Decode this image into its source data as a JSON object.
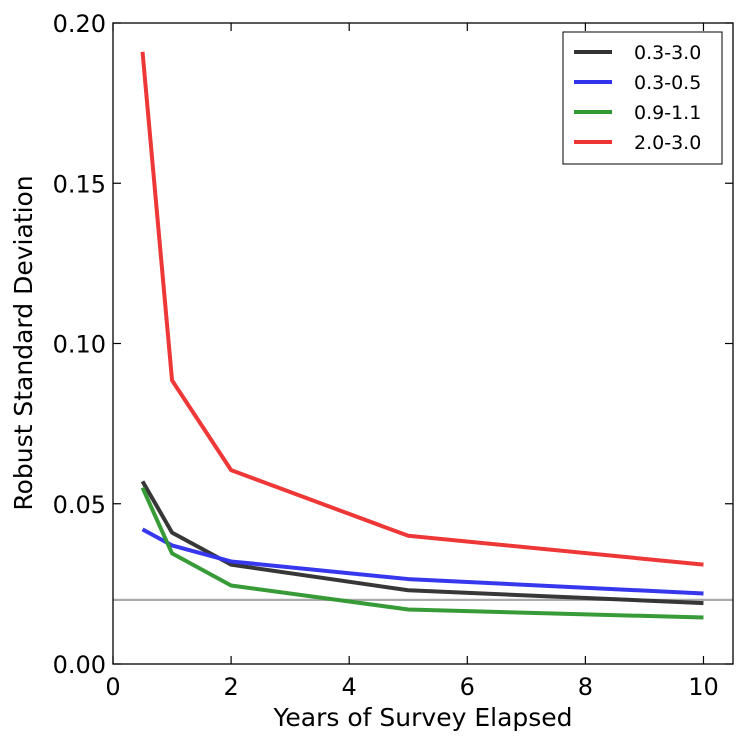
{
  "chart_data": {
    "type": "line",
    "title": "",
    "xlabel": "Years of Survey Elapsed",
    "ylabel": "Robust Standard Deviation",
    "xlim": [
      0,
      10.5
    ],
    "ylim": [
      0.0,
      0.2
    ],
    "xticks": [
      0,
      2,
      4,
      6,
      8,
      10
    ],
    "xtick_labels": [
      "0",
      "2",
      "4",
      "6",
      "8",
      "10"
    ],
    "yticks": [
      0.0,
      0.05,
      0.1,
      0.15,
      0.2
    ],
    "ytick_labels": [
      "0.00",
      "0.05",
      "0.10",
      "0.15",
      "0.20"
    ],
    "grid": false,
    "legend_position": "top-right",
    "x": [
      0.5,
      1,
      2,
      5,
      10
    ],
    "series": [
      {
        "name": "0.3-3.0",
        "color": "#333333",
        "values": [
          0.057,
          0.041,
          0.031,
          0.023,
          0.019
        ]
      },
      {
        "name": "0.3-0.5",
        "color": "#3333ee",
        "values": [
          0.042,
          0.037,
          0.032,
          0.0265,
          0.022
        ]
      },
      {
        "name": "0.9-1.1",
        "color": "#339933",
        "values": [
          0.055,
          0.0345,
          0.0245,
          0.017,
          0.0145
        ]
      },
      {
        "name": "2.0-3.0",
        "color": "#ee3333",
        "values": [
          0.191,
          0.0885,
          0.0605,
          0.04,
          0.031
        ]
      }
    ],
    "reference_line": {
      "y": 0.02,
      "color": "#aaaaaa"
    }
  }
}
